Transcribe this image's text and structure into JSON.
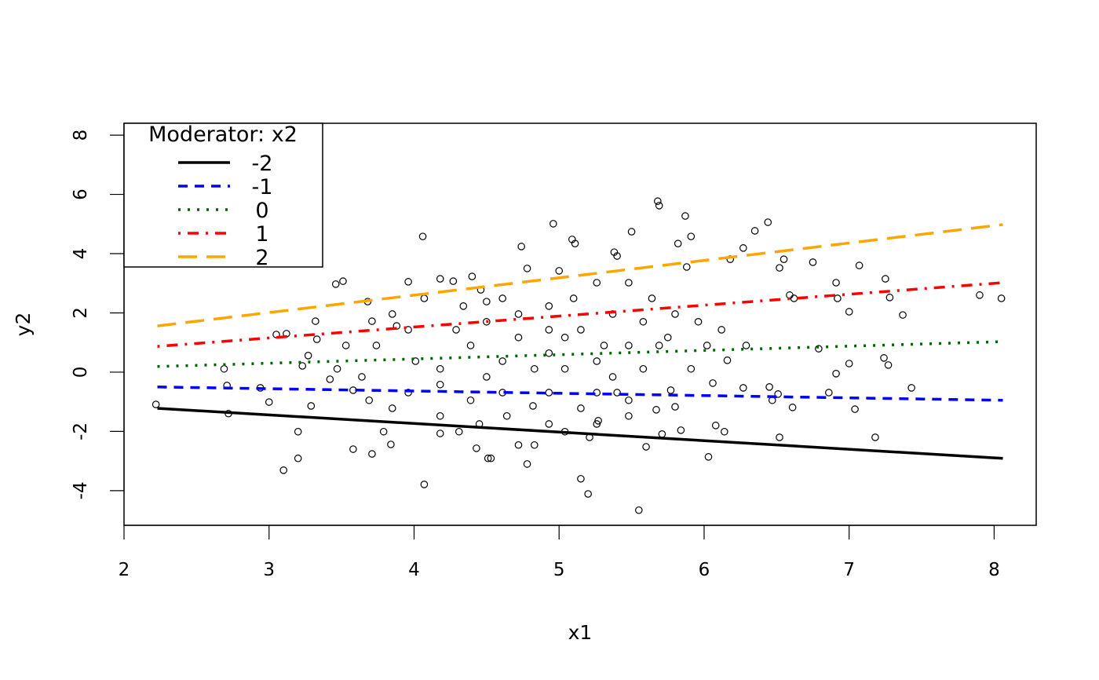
{
  "chart_data": {
    "type": "scatter",
    "title": "",
    "xlabel": "x1",
    "ylabel": "y2",
    "xlim": [
      2,
      8.29
    ],
    "ylim": [
      -5.17,
      8.4
    ],
    "xticks": [
      "2",
      "3",
      "4",
      "5",
      "6",
      "7",
      "8"
    ],
    "yticks": [
      "-4",
      "-2",
      "0",
      "2",
      "4",
      "6",
      "8"
    ],
    "grid": false,
    "legend": {
      "title": "Moderator: x2",
      "placement": "top-left",
      "entries": [
        "-2",
        "-1",
        "0",
        "1",
        "2"
      ]
    },
    "lines": [
      {
        "name": "-2",
        "color": "#000000",
        "style": "solid",
        "x": [
          2.23,
          8.06
        ],
        "y": [
          -1.22,
          -2.91
        ]
      },
      {
        "name": "-1",
        "color": "#0000ff",
        "style": "dashed",
        "x": [
          2.23,
          8.06
        ],
        "y": [
          -0.5,
          -0.95
        ]
      },
      {
        "name": "0",
        "color": "#006400",
        "style": "dotted",
        "x": [
          2.23,
          8.06
        ],
        "y": [
          0.19,
          1.03
        ]
      },
      {
        "name": "1",
        "color": "#ff0000",
        "style": "dotdash",
        "x": [
          2.23,
          8.06
        ],
        "y": [
          0.87,
          3.02
        ]
      },
      {
        "name": "2",
        "color": "#ffa500",
        "style": "longdash",
        "x": [
          2.23,
          8.06
        ],
        "y": [
          1.56,
          4.98
        ]
      }
    ],
    "points": [
      [
        2.22,
        -1.09
      ],
      [
        2.69,
        0.11
      ],
      [
        2.71,
        -0.45
      ],
      [
        2.72,
        -1.4
      ],
      [
        2.94,
        -0.53
      ],
      [
        3.0,
        -1.01
      ],
      [
        3.05,
        1.27
      ],
      [
        3.12,
        1.3
      ],
      [
        3.1,
        -3.31
      ],
      [
        3.2,
        -2.01
      ],
      [
        3.2,
        -2.91
      ],
      [
        3.23,
        0.21
      ],
      [
        3.27,
        0.56
      ],
      [
        3.32,
        1.72
      ],
      [
        3.33,
        1.11
      ],
      [
        3.29,
        -1.14
      ],
      [
        3.46,
        2.97
      ],
      [
        3.51,
        3.07
      ],
      [
        3.42,
        -0.24
      ],
      [
        3.58,
        -0.61
      ],
      [
        3.58,
        -2.6
      ],
      [
        3.68,
        2.38
      ],
      [
        3.71,
        1.72
      ],
      [
        3.71,
        -2.76
      ],
      [
        3.79,
        -2.01
      ],
      [
        3.84,
        -2.44
      ],
      [
        3.96,
        3.05
      ],
      [
        3.88,
        1.56
      ],
      [
        4.07,
        -3.79
      ],
      [
        4.06,
        4.58
      ],
      [
        4.18,
        3.15
      ],
      [
        4.27,
        3.07
      ],
      [
        4.4,
        3.23
      ],
      [
        4.46,
        2.78
      ],
      [
        4.5,
        2.38
      ],
      [
        4.74,
        4.24
      ],
      [
        4.78,
        3.5
      ],
      [
        4.64,
        -1.48
      ],
      [
        4.53,
        -2.91
      ],
      [
        4.51,
        -2.91
      ],
      [
        4.43,
        -2.57
      ],
      [
        4.18,
        -2.07
      ],
      [
        4.31,
        -2.01
      ],
      [
        4.78,
        -3.1
      ],
      [
        4.82,
        -1.14
      ],
      [
        4.83,
        -2.46
      ],
      [
        4.72,
        -2.46
      ],
      [
        4.96,
        5.01
      ],
      [
        5.0,
        3.42
      ],
      [
        5.09,
        4.48
      ],
      [
        5.11,
        4.34
      ],
      [
        5.15,
        -3.6
      ],
      [
        5.2,
        -4.11
      ],
      [
        5.21,
        -2.2
      ],
      [
        5.27,
        -1.64
      ],
      [
        5.4,
        -0.69
      ],
      [
        5.5,
        4.74
      ],
      [
        5.38,
        4.05
      ],
      [
        5.4,
        3.92
      ],
      [
        5.55,
        -4.66
      ],
      [
        5.68,
        5.77
      ],
      [
        5.69,
        5.62
      ],
      [
        5.87,
        5.27
      ],
      [
        5.91,
        4.58
      ],
      [
        5.82,
        4.34
      ],
      [
        5.88,
        3.55
      ],
      [
        6.14,
        -2.01
      ],
      [
        6.08,
        -1.8
      ],
      [
        6.03,
        -2.86
      ],
      [
        6.06,
        -0.37
      ],
      [
        6.16,
        0.4
      ],
      [
        6.27,
        4.19
      ],
      [
        6.18,
        3.81
      ],
      [
        6.35,
        4.77
      ],
      [
        6.27,
        -0.53
      ],
      [
        6.44,
        5.06
      ],
      [
        6.52,
        3.52
      ],
      [
        6.52,
        -2.2
      ],
      [
        6.55,
        3.81
      ],
      [
        6.59,
        2.6
      ],
      [
        6.62,
        2.49
      ],
      [
        6.75,
        3.71
      ],
      [
        6.79,
        0.79
      ],
      [
        6.61,
        -1.19
      ],
      [
        6.51,
        -0.74
      ],
      [
        6.91,
        -0.05
      ],
      [
        6.91,
        3.02
      ],
      [
        6.92,
        2.49
      ],
      [
        7.0,
        2.04
      ],
      [
        7.07,
        3.6
      ],
      [
        7.04,
        -1.25
      ],
      [
        7.0,
        0.29
      ],
      [
        7.24,
        0.48
      ],
      [
        7.27,
        0.24
      ],
      [
        7.18,
        -2.2
      ],
      [
        7.25,
        3.15
      ],
      [
        7.28,
        2.52
      ],
      [
        7.37,
        1.93
      ],
      [
        7.43,
        -0.53
      ],
      [
        7.9,
        2.6
      ],
      [
        8.05,
        2.49
      ],
      [
        6.47,
        -0.95
      ],
      [
        6.86,
        -0.69
      ],
      [
        6.45,
        -0.5
      ],
      [
        5.8,
        -1.17
      ],
      [
        5.67,
        -1.27
      ],
      [
        5.77,
        -0.61
      ],
      [
        5.6,
        -2.52
      ],
      [
        5.84,
        -1.96
      ],
      [
        5.71,
        -2.09
      ],
      [
        4.93,
        0.64
      ],
      [
        5.04,
        0.11
      ],
      [
        5.26,
        0.37
      ],
      [
        5.48,
        0.9
      ],
      [
        4.61,
        0.37
      ],
      [
        4.39,
        0.9
      ],
      [
        4.18,
        0.11
      ],
      [
        4.01,
        0.37
      ],
      [
        4.29,
        1.43
      ],
      [
        4.5,
        1.7
      ],
      [
        4.72,
        1.96
      ],
      [
        4.93,
        2.23
      ],
      [
        5.15,
        1.43
      ],
      [
        5.37,
        1.96
      ],
      [
        5.58,
        1.7
      ],
      [
        5.75,
        1.17
      ],
      [
        5.91,
        0.11
      ],
      [
        6.02,
        0.9
      ],
      [
        4.61,
        -0.69
      ],
      [
        4.39,
        -0.95
      ],
      [
        4.18,
        -0.42
      ],
      [
        3.96,
        -0.69
      ],
      [
        4.93,
        -0.69
      ],
      [
        5.15,
        -1.22
      ],
      [
        5.37,
        -0.16
      ],
      [
        5.58,
        0.11
      ],
      [
        4.72,
        1.17
      ],
      [
        5.04,
        1.17
      ],
      [
        5.31,
        0.9
      ],
      [
        3.96,
        1.43
      ],
      [
        3.74,
        0.9
      ],
      [
        3.64,
        -0.16
      ],
      [
        4.5,
        -0.16
      ],
      [
        4.83,
        0.11
      ],
      [
        4.93,
        1.43
      ],
      [
        5.26,
        -0.69
      ],
      [
        5.48,
        -0.95
      ],
      [
        5.69,
        0.9
      ],
      [
        5.8,
        1.96
      ],
      [
        5.96,
        1.7
      ],
      [
        6.12,
        1.43
      ],
      [
        6.29,
        0.9
      ],
      [
        5.64,
        2.49
      ],
      [
        5.48,
        3.02
      ],
      [
        5.26,
        3.02
      ],
      [
        5.1,
        2.49
      ],
      [
        4.61,
        2.49
      ],
      [
        4.34,
        2.23
      ],
      [
        4.07,
        2.49
      ],
      [
        3.85,
        1.96
      ],
      [
        4.18,
        -1.48
      ],
      [
        3.85,
        -1.22
      ],
      [
        3.69,
        -0.95
      ],
      [
        3.47,
        0.11
      ],
      [
        3.53,
        0.9
      ],
      [
        4.45,
        -1.75
      ],
      [
        4.93,
        -1.75
      ],
      [
        5.26,
        -1.75
      ],
      [
        5.48,
        -1.48
      ],
      [
        5.04,
        -2.01
      ]
    ]
  }
}
